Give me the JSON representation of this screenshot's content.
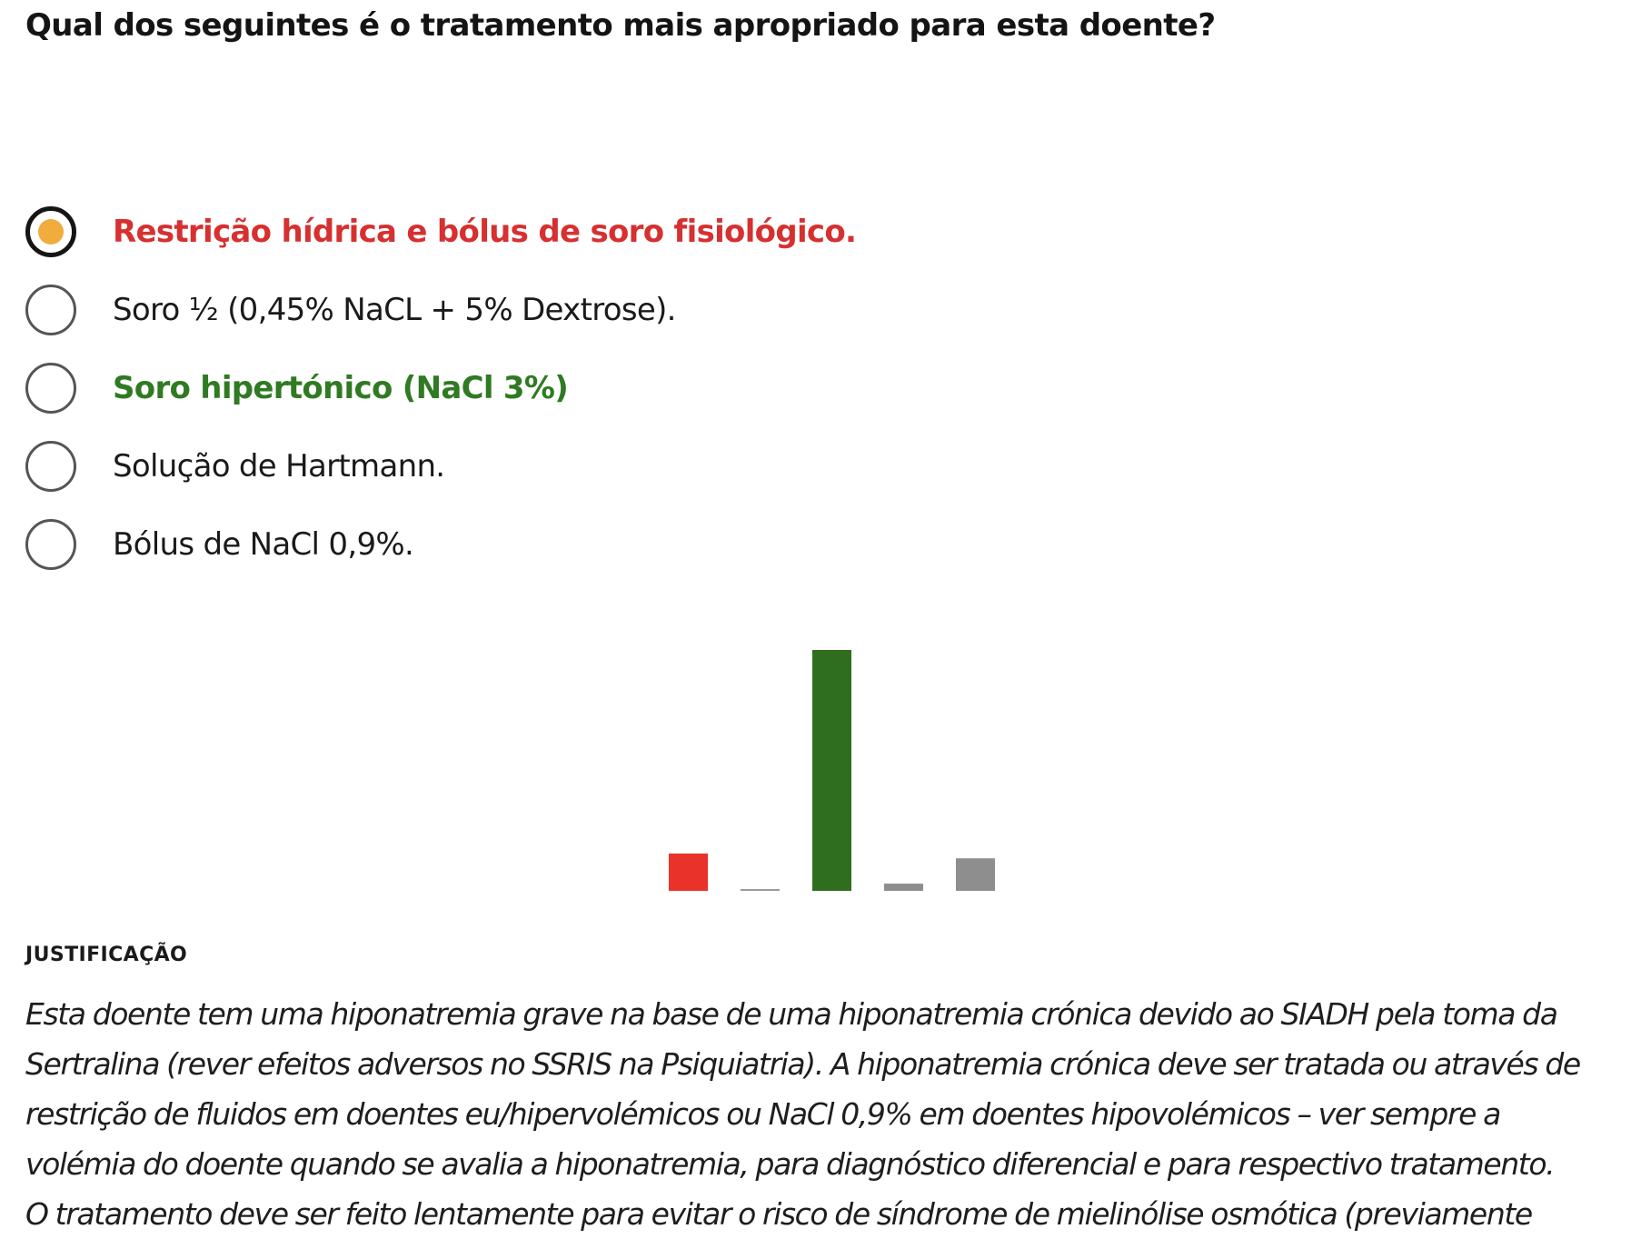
{
  "question": {
    "text": "Qual dos seguintes é o tratamento mais apropriado para esta doente?"
  },
  "options": [
    {
      "label": "Restrição hídrica e bólus de soro fisiológico.",
      "selected": true,
      "status": "wrong"
    },
    {
      "label": "Soro ½ (0,45% NaCL + 5% Dextrose).",
      "selected": false,
      "status": "neutral"
    },
    {
      "label": "Soro hipertónico (NaCl 3%)",
      "selected": false,
      "status": "correct"
    },
    {
      "label": "Solução de Hartmann.",
      "selected": false,
      "status": "neutral"
    },
    {
      "label": "Bólus de NaCl 0,9%.",
      "selected": false,
      "status": "neutral"
    }
  ],
  "colors": {
    "wrong": "#d63030",
    "correct": "#2f7a22",
    "neutral_bar": "#8e8e8e",
    "selected_dot": "#f0ac3c"
  },
  "chart_data": {
    "type": "bar",
    "categories": [
      "Restrição hídrica e bólus de soro fisiológico.",
      "Soro ½ (0,45% NaCL + 5% Dextrose).",
      "Soro hipertónico (NaCl 3%)",
      "Solução de Hartmann.",
      "Bólus de NaCl 0,9%."
    ],
    "values": [
      15.5,
      0.5,
      100,
      3,
      13.5
    ],
    "bar_colors": [
      "#e8322a",
      "#9a9a9a",
      "#2f6e1f",
      "#8e8e8e",
      "#8e8e8e"
    ],
    "title": "",
    "xlabel": "",
    "ylabel": "",
    "ylim": [
      0,
      100
    ],
    "grid": false
  },
  "justification": {
    "heading": "JUSTIFICAÇÃO",
    "lines": [
      "Esta doente tem uma hiponatremia grave na base de uma hiponatremia crónica devido ao SIADH pela toma da",
      "Sertralina (rever efeitos adversos no SSRIS na Psiquiatria). A hiponatremia crónica deve ser tratada ou através de",
      "restrição de fluidos em doentes eu/hipervolémicos ou NaCl 0,9% em doentes hipovolémicos – ver sempre a",
      "volémia do doente quando se avalia a hiponatremia, para diagnóstico diferencial e para respectivo tratamento.",
      "O tratamento deve ser feito lentamente para evitar o risco de síndrome de mielinólise osmótica (previamente"
    ]
  }
}
